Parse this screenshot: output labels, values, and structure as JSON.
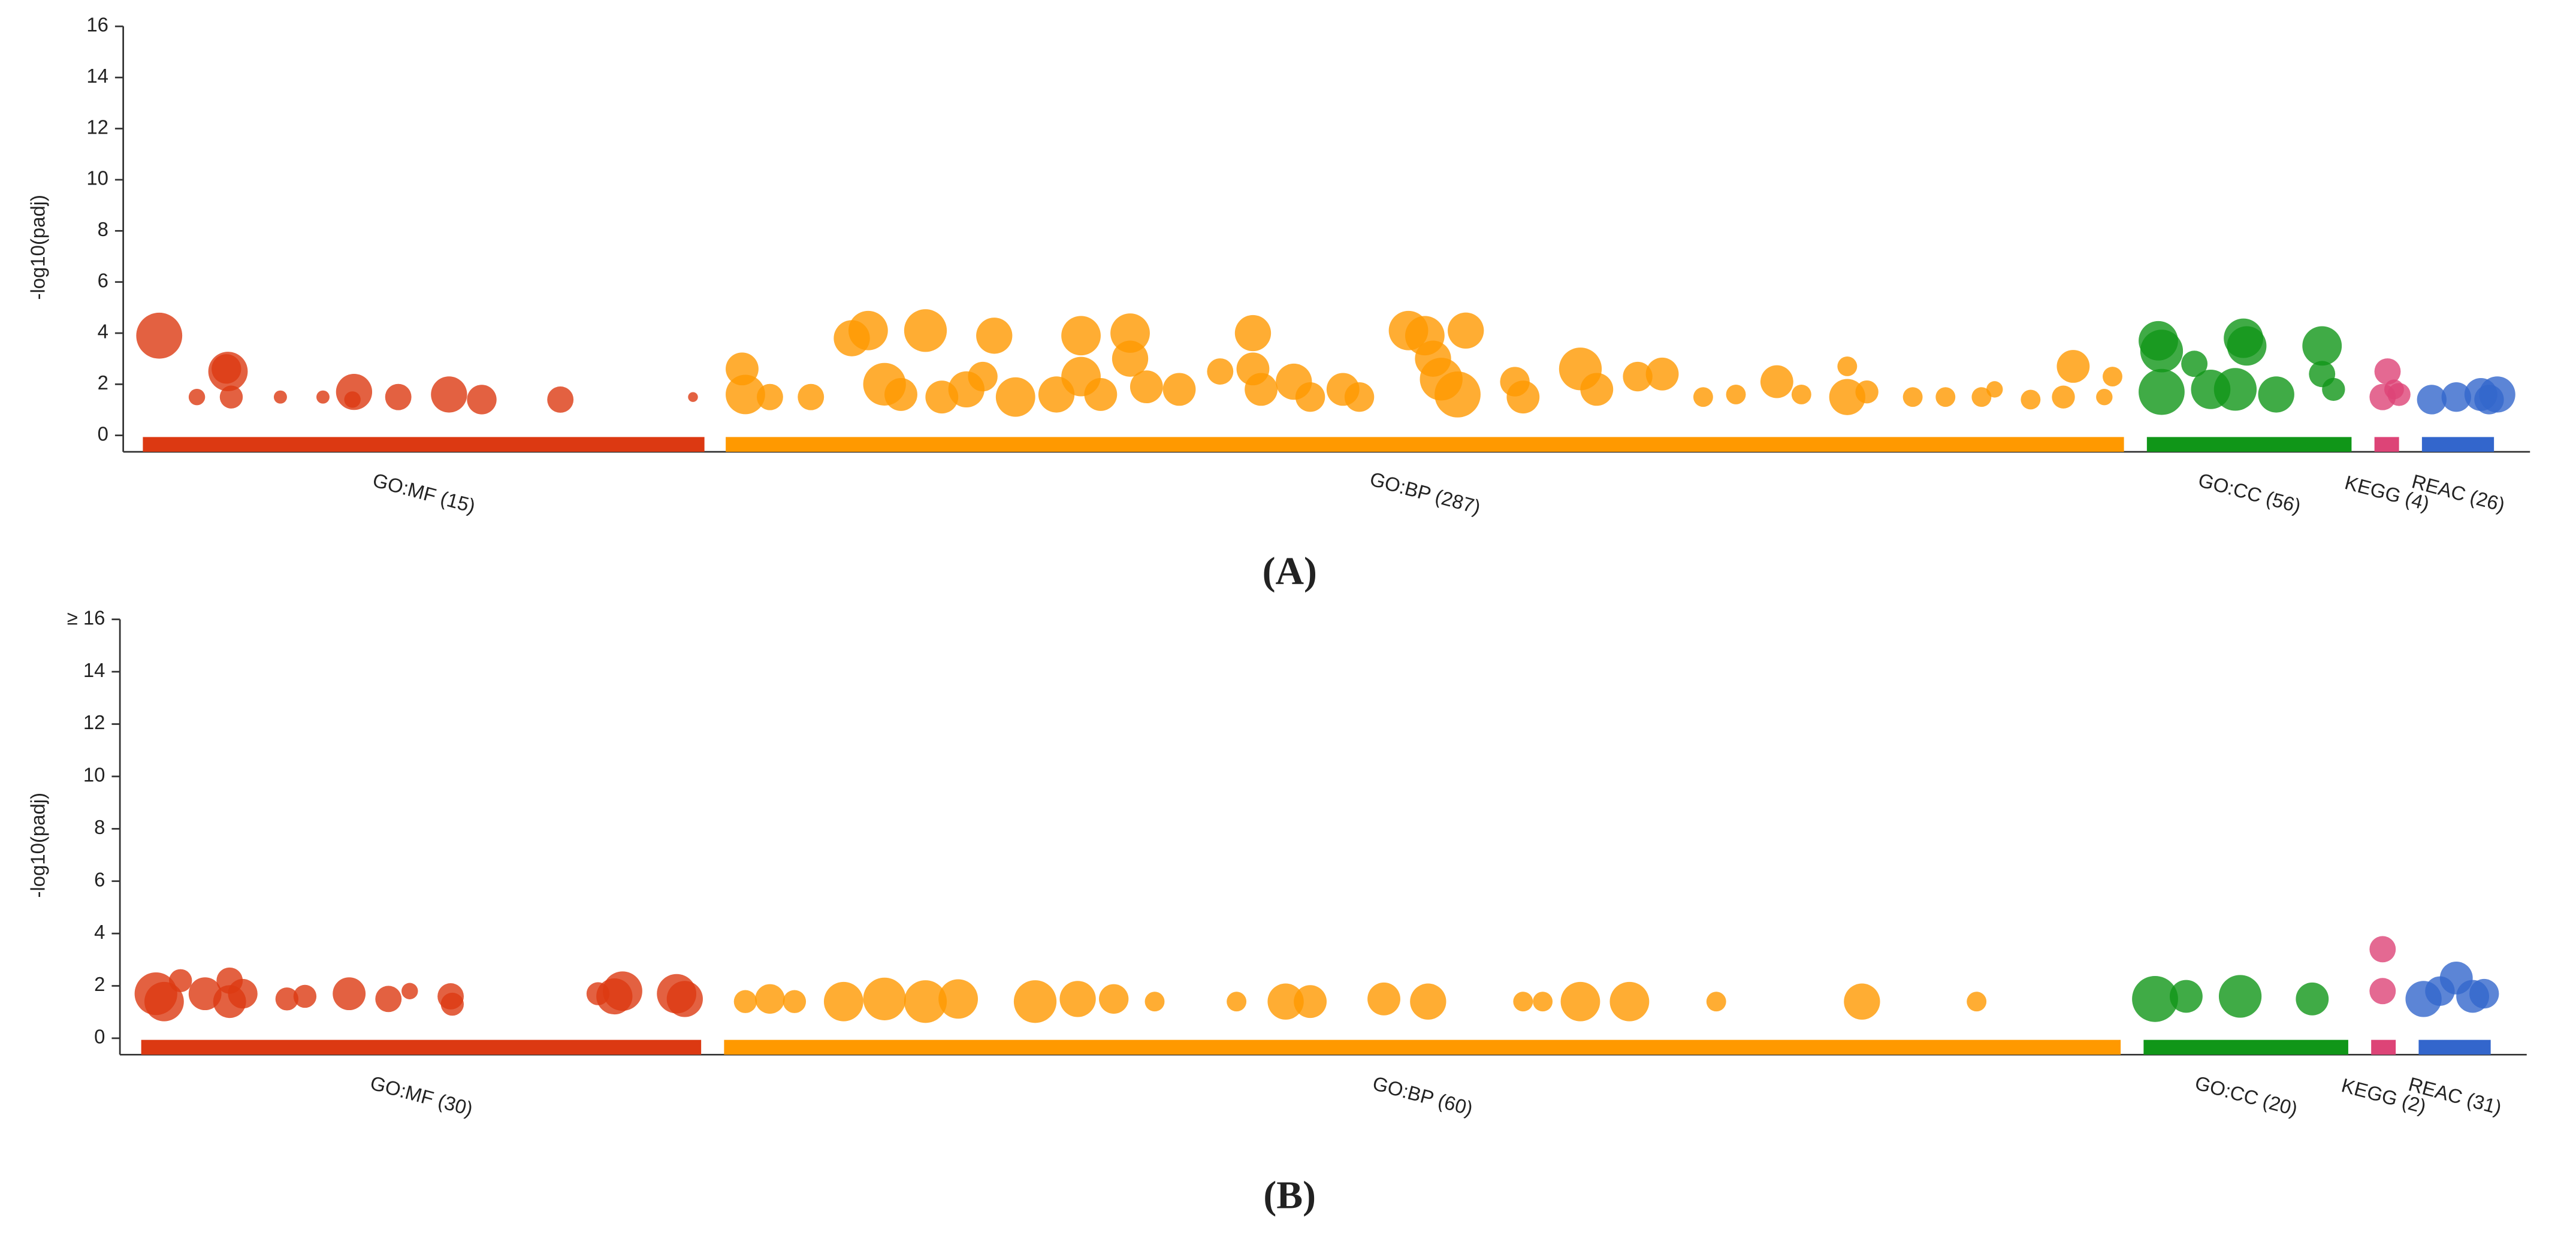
{
  "chart_data": [
    {
      "type": "scatter",
      "panel_label": "(A)",
      "y_label": "-log10(padj)",
      "xlim": [
        0,
        1470
      ],
      "ylim": [
        0,
        16
      ],
      "yticks": [
        0,
        2,
        4,
        6,
        8,
        10,
        12,
        14,
        16
      ],
      "series": [
        {
          "name": "GO:MF (15)",
          "color": "#dc3912",
          "range": [
            12,
            355
          ],
          "x": [
            22,
            45,
            64,
            66,
            96,
            122,
            141,
            168,
            199,
            219,
            267,
            348,
            140,
            63
          ],
          "values": [
            3.9,
            1.5,
            2.5,
            1.5,
            1.5,
            1.5,
            1.7,
            1.5,
            1.6,
            1.4,
            1.4,
            1.5,
            1.4,
            2.6
          ],
          "sizes": [
            14,
            5,
            12,
            7,
            4,
            4,
            11,
            8,
            11,
            9,
            8,
            3,
            5,
            9
          ]
        },
        {
          "name": "GO:BP (287)",
          "color": "#ff9900",
          "range": [
            368,
            1222
          ],
          "x": [
            378,
            380,
            395,
            420,
            445,
            455,
            465,
            475,
            490,
            500,
            515,
            525,
            532,
            545,
            570,
            585,
            585,
            597,
            615,
            615,
            625,
            645,
            670,
            690,
            690,
            695,
            715,
            725,
            745,
            755,
            785,
            795,
            800,
            805,
            815,
            820,
            850,
            855,
            890,
            900,
            925,
            940,
            965,
            985,
            1010,
            1025,
            1053,
            1053,
            1065,
            1093,
            1113,
            1135,
            1143,
            1165,
            1185,
            1191,
            1210,
            1215
          ],
          "values": [
            2.6,
            1.6,
            1.5,
            1.5,
            3.8,
            4.1,
            2.0,
            1.6,
            4.1,
            1.5,
            1.8,
            2.3,
            3.9,
            1.5,
            1.6,
            3.9,
            2.3,
            1.6,
            4.0,
            3.0,
            1.9,
            1.8,
            2.5,
            4.0,
            2.6,
            1.8,
            2.1,
            1.5,
            1.8,
            1.5,
            4.1,
            3.9,
            3.0,
            2.2,
            1.6,
            4.1,
            2.1,
            1.5,
            2.6,
            1.8,
            2.3,
            2.4,
            1.5,
            1.6,
            2.1,
            1.6,
            2.7,
            1.5,
            1.7,
            1.5,
            1.5,
            1.5,
            1.8,
            1.4,
            1.5,
            2.7,
            1.5,
            2.3
          ],
          "sizes": [
            10,
            12,
            8,
            8,
            11,
            12,
            13,
            10,
            13,
            10,
            11,
            9,
            11,
            12,
            11,
            12,
            12,
            10,
            12,
            11,
            10,
            10,
            8,
            11,
            10,
            10,
            11,
            9,
            10,
            9,
            12,
            12,
            11,
            13,
            14,
            11,
            9,
            10,
            13,
            10,
            9,
            10,
            6,
            6,
            10,
            6,
            6,
            11,
            7,
            6,
            6,
            6,
            5,
            6,
            7,
            10,
            5,
            6
          ]
        },
        {
          "name": "GO:CC (56)",
          "color": "#109618",
          "range": [
            1236,
            1361
          ],
          "x": [
            1243,
            1245,
            1245,
            1265,
            1275,
            1290,
            1295,
            1297,
            1315,
            1343,
            1343,
            1350
          ],
          "values": [
            3.7,
            3.3,
            1.7,
            2.8,
            1.8,
            1.8,
            3.8,
            3.5,
            1.6,
            3.5,
            2.4,
            1.8
          ],
          "sizes": [
            12,
            13,
            14,
            8,
            12,
            13,
            12,
            12,
            11,
            12,
            8,
            7
          ]
        },
        {
          "name": "KEGG (4)",
          "color": "#dd4477",
          "range": [
            1375,
            1390
          ],
          "x": [
            1383,
            1380,
            1387,
            1390
          ],
          "values": [
            2.5,
            1.5,
            1.8,
            1.6
          ],
          "sizes": [
            8,
            8,
            6,
            7
          ]
        },
        {
          "name": "REAC (26)",
          "color": "#3366cc",
          "range": [
            1404,
            1448
          ],
          "x": [
            1410,
            1425,
            1440,
            1450,
            1445
          ],
          "values": [
            1.4,
            1.5,
            1.6,
            1.6,
            1.4
          ],
          "sizes": [
            9,
            9,
            10,
            11,
            9
          ]
        }
      ]
    },
    {
      "type": "scatter",
      "panel_label": "(B)",
      "y_label": "-log10(padj)",
      "xlim": [
        0,
        1470
      ],
      "ylim": [
        0,
        16
      ],
      "yticks": [
        0,
        2,
        4,
        6,
        8,
        10,
        12,
        14,
        {
          "value": 16,
          "label": "≥ 16"
        }
      ],
      "series": [
        {
          "name": "GO:MF (30)",
          "color": "#dc3912",
          "range": [
            13,
            355
          ],
          "x": [
            22,
            27,
            37,
            52,
            67,
            67,
            75,
            102,
            113,
            140,
            164,
            177,
            202,
            203,
            292,
            302,
            307,
            340,
            345
          ],
          "values": [
            1.7,
            1.4,
            2.2,
            1.7,
            2.2,
            1.4,
            1.7,
            1.5,
            1.6,
            1.7,
            1.5,
            1.8,
            1.6,
            1.3,
            1.7,
            1.6,
            1.8,
            1.7,
            1.5
          ],
          "sizes": [
            13,
            12,
            7,
            10,
            8,
            10,
            9,
            7,
            7,
            10,
            8,
            5,
            8,
            7,
            7,
            11,
            12,
            12,
            11
          ]
        },
        {
          "name": "GO:BP (60)",
          "color": "#ff9900",
          "range": [
            369,
            1222
          ],
          "x": [
            382,
            397,
            412,
            442,
            467,
            492,
            512,
            559,
            585,
            607,
            632,
            682,
            712,
            727,
            772,
            799,
            857,
            869,
            892,
            922,
            975,
            1064,
            1134
          ],
          "values": [
            1.4,
            1.5,
            1.4,
            1.4,
            1.5,
            1.4,
            1.5,
            1.4,
            1.5,
            1.5,
            1.4,
            1.4,
            1.4,
            1.4,
            1.5,
            1.4,
            1.4,
            1.4,
            1.4,
            1.4,
            1.4,
            1.4,
            1.4
          ],
          "sizes": [
            7,
            9,
            7,
            12,
            13,
            13,
            12,
            13,
            11,
            9,
            6,
            6,
            11,
            10,
            10,
            11,
            6,
            6,
            12,
            12,
            6,
            11,
            6
          ]
        },
        {
          "name": "GO:CC (20)",
          "color": "#109618",
          "range": [
            1236,
            1361
          ],
          "x": [
            1243,
            1262,
            1295,
            1339
          ],
          "values": [
            1.5,
            1.6,
            1.6,
            1.5
          ],
          "sizes": [
            14,
            10,
            13,
            10
          ]
        },
        {
          "name": "KEGG (2)",
          "color": "#dd4477",
          "range": [
            1375,
            1390
          ],
          "x": [
            1382,
            1382
          ],
          "values": [
            3.4,
            1.8
          ],
          "sizes": [
            8,
            8
          ]
        },
        {
          "name": "REAC (31)",
          "color": "#3366cc",
          "range": [
            1404,
            1448
          ],
          "x": [
            1407,
            1417,
            1427,
            1437,
            1444
          ],
          "values": [
            1.5,
            1.8,
            2.3,
            1.6,
            1.7
          ],
          "sizes": [
            11,
            9,
            10,
            10,
            9
          ]
        }
      ]
    }
  ]
}
